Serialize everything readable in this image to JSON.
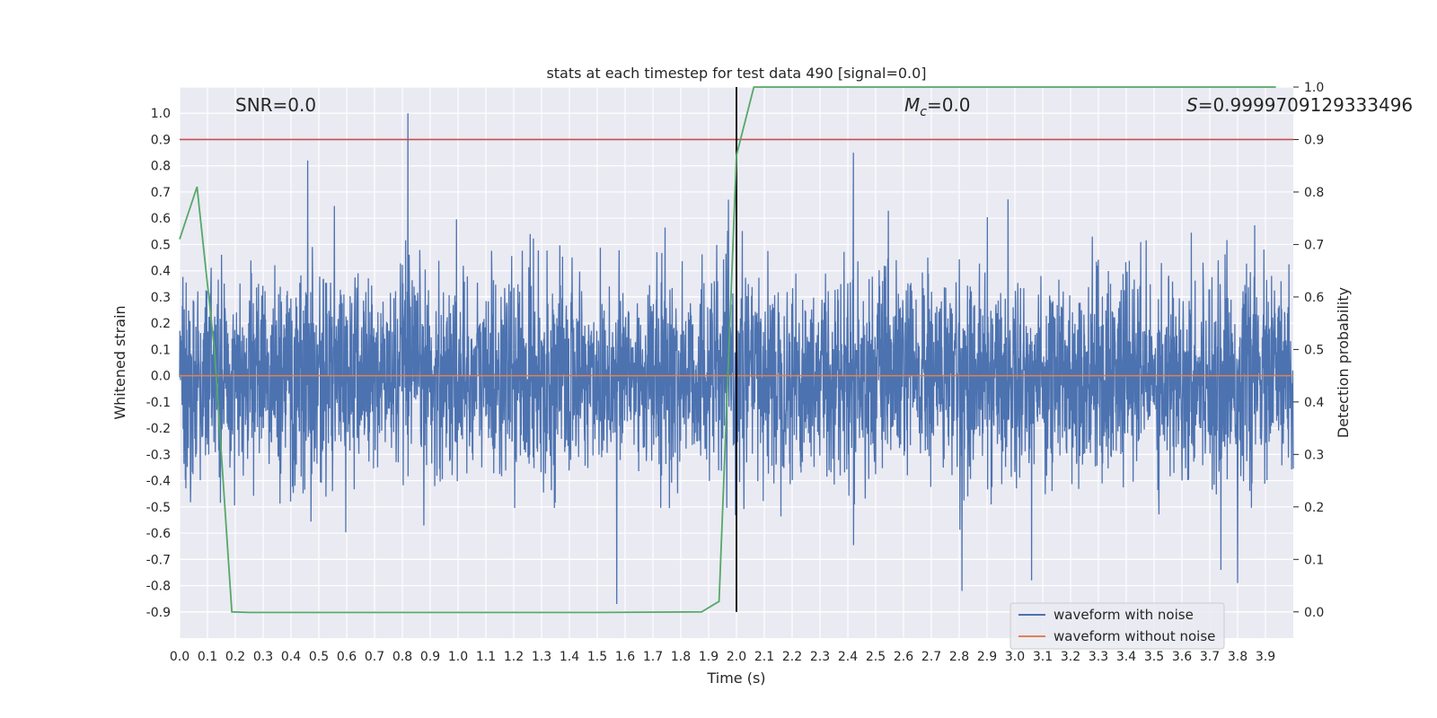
{
  "chart_data": {
    "type": "line",
    "title": "stats at each timestep for test data 490 [signal=0.0]",
    "xlabel": "Time (s)",
    "ylabel": "Whitened strain",
    "y2label": "Detection probability",
    "xlim": [
      0.0,
      4.0
    ],
    "ylim": [
      -1.0,
      1.1
    ],
    "y2lim": [
      -0.05,
      1.0
    ],
    "x_ticks": [
      "0.0",
      "0.1",
      "0.2",
      "0.3",
      "0.4",
      "0.5",
      "0.6",
      "0.7",
      "0.8",
      "0.9",
      "1.0",
      "1.1",
      "1.2",
      "1.3",
      "1.4",
      "1.5",
      "1.6",
      "1.7",
      "1.8",
      "1.9",
      "2.0",
      "2.1",
      "2.2",
      "2.3",
      "2.4",
      "2.5",
      "2.6",
      "2.7",
      "2.8",
      "2.9",
      "3.0",
      "3.1",
      "3.2",
      "3.3",
      "3.4",
      "3.5",
      "3.6",
      "3.7",
      "3.8",
      "3.9"
    ],
    "y_ticks": [
      "1.0",
      "0.9",
      "0.8",
      "0.7",
      "0.6",
      "0.5",
      "0.4",
      "0.3",
      "0.2",
      "0.1",
      "0.0",
      "-0.1",
      "-0.2",
      "-0.3",
      "-0.4",
      "-0.5",
      "-0.6",
      "-0.7",
      "-0.8",
      "-0.9"
    ],
    "y2_ticks": [
      "1.0",
      "0.9",
      "0.8",
      "0.7",
      "0.6",
      "0.5",
      "0.4",
      "0.3",
      "0.2",
      "0.1",
      "0.0"
    ],
    "annotations": {
      "snr": "SNR=0.0",
      "mc_symbol": "M",
      "mc_subscript": "c",
      "mc_value": "=0.0",
      "s_symbol": "S",
      "s_value": "=0.9999709129333496"
    },
    "legend": {
      "placement": "lower-right",
      "entries": [
        "waveform with noise",
        "waveform without noise"
      ]
    },
    "series": [
      {
        "name": "waveform with noise",
        "axis": "left",
        "color": "#4c72b0",
        "note_values": "dense noise between about -0.87 and 1.0; notable peaks listed",
        "peaks": [
          {
            "x": 0.46,
            "y": 0.82
          },
          {
            "x": 0.82,
            "y": 1.0
          },
          {
            "x": 2.42,
            "y": 0.85
          },
          {
            "x": 1.57,
            "y": -0.87
          },
          {
            "x": 2.81,
            "y": -0.82
          },
          {
            "x": 3.8,
            "y": -0.79
          },
          {
            "x": 3.06,
            "y": -0.78
          },
          {
            "x": 3.74,
            "y": -0.74
          }
        ]
      },
      {
        "name": "waveform without noise",
        "axis": "left",
        "color": "#dd8452",
        "x": [
          0.0,
          4.0
        ],
        "y": [
          0.0,
          0.0
        ]
      },
      {
        "axis": "right",
        "color": "#55a868",
        "x": [
          0.0,
          0.0625,
          0.125,
          0.1875,
          0.25,
          0.3125,
          0.5,
          1.0,
          1.5,
          1.875,
          1.9375,
          2.0,
          2.0625,
          2.5,
          3.0,
          3.5,
          3.9375
        ],
        "y": [
          0.71,
          0.81,
          0.5,
          0.0,
          -0.001,
          -0.001,
          -0.001,
          -0.001,
          -0.001,
          0.0,
          0.02,
          0.87,
          1.0,
          1.0,
          1.0,
          1.0,
          1.0
        ]
      }
    ],
    "reference_lines": [
      {
        "orientation": "horizontal",
        "axis": "right",
        "value": 0.9,
        "color": "#c44e52"
      },
      {
        "orientation": "vertical",
        "value": 2.0,
        "color": "#000000"
      }
    ],
    "grid": true,
    "background": "#eaeaf2"
  }
}
